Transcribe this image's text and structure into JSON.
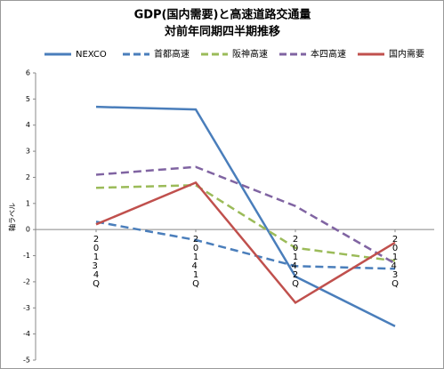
{
  "chart_data": {
    "type": "line",
    "title": "GDP(国内需要)と高速道路交通量",
    "subtitle": "対前年同期四半期推移",
    "y_label": "軸ラベル",
    "categories": [
      "2013 4Q",
      "2014 1Q",
      "2014 2Q",
      "2014 3Q"
    ],
    "series": [
      {
        "name": "NEXCO",
        "color": "#4a7ebb",
        "line_style": "solid",
        "values": [
          4.7,
          4.6,
          -1.8,
          -3.7
        ]
      },
      {
        "name": "首都高速",
        "color": "#4a7ebb",
        "line_style": "dashed",
        "values": [
          0.3,
          -0.4,
          -1.4,
          -1.5
        ]
      },
      {
        "name": "阪神高速",
        "color": "#9bbb59",
        "line_style": "dashed",
        "values": [
          1.6,
          1.7,
          -0.7,
          -1.2
        ]
      },
      {
        "name": "本四高速",
        "color": "#8064a2",
        "line_style": "dashed",
        "values": [
          2.1,
          2.4,
          0.9,
          -1.3
        ]
      },
      {
        "name": "国内需要",
        "color": "#c0504d",
        "line_style": "solid",
        "values": [
          0.2,
          1.8,
          -2.8,
          -0.5
        ]
      }
    ],
    "ylim": [
      -5,
      6
    ],
    "yticks": [
      -5,
      -4,
      -3,
      -2,
      -1,
      0,
      1,
      2,
      3,
      4,
      5,
      6
    ],
    "grid": false,
    "legend": "top"
  }
}
